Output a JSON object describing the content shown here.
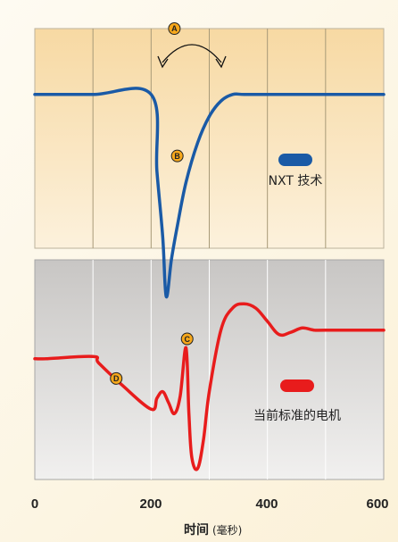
{
  "chart_data": [
    {
      "type": "line",
      "xlim": [
        0,
        600
      ],
      "grid": true,
      "series": [
        {
          "name": "NXT 技术",
          "color": "#1a5aa6",
          "x": [
            0,
            100,
            200,
            210,
            220,
            226,
            235,
            245,
            260,
            280,
            300,
            320,
            340,
            360,
            400,
            500,
            600
          ],
          "y": [
            0.7,
            0.7,
            0.7,
            0.35,
            0.05,
            -0.22,
            -0.05,
            0.1,
            0.3,
            0.48,
            0.6,
            0.67,
            0.7,
            0.7,
            0.7,
            0.7,
            0.7
          ]
        }
      ],
      "annotations": [
        {
          "label": "A",
          "x": 240,
          "y": 1.0
        },
        {
          "label": "B",
          "x": 245,
          "y": 0.42
        }
      ],
      "legend": {
        "position": "right",
        "labels": [
          "NXT 技术"
        ]
      }
    },
    {
      "type": "line",
      "xlim": [
        0,
        600
      ],
      "grid": true,
      "series": [
        {
          "name": "当前标准的电机",
          "color": "#e81c1c",
          "x": [
            0,
            20,
            100,
            110,
            150,
            200,
            210,
            220,
            230,
            240,
            250,
            260,
            265,
            270,
            280,
            290,
            300,
            320,
            340,
            360,
            380,
            400,
            420,
            440,
            460,
            480,
            500,
            600
          ],
          "y": [
            0.55,
            0.55,
            0.56,
            0.53,
            0.43,
            0.32,
            0.37,
            0.4,
            0.35,
            0.3,
            0.38,
            0.6,
            0.3,
            0.1,
            0.05,
            0.18,
            0.4,
            0.68,
            0.78,
            0.8,
            0.78,
            0.72,
            0.66,
            0.67,
            0.69,
            0.68,
            0.68,
            0.68
          ]
        }
      ],
      "annotations": [
        {
          "label": "C",
          "x": 262,
          "y": 0.64
        },
        {
          "label": "D",
          "x": 140,
          "y": 0.46
        }
      ],
      "legend": {
        "position": "right",
        "labels": [
          "当前标准的电机"
        ]
      }
    }
  ],
  "x_ticks": [
    "0",
    "200",
    "400",
    "600"
  ],
  "xlabel": "时间",
  "xlabel_unit": "(毫秒)"
}
